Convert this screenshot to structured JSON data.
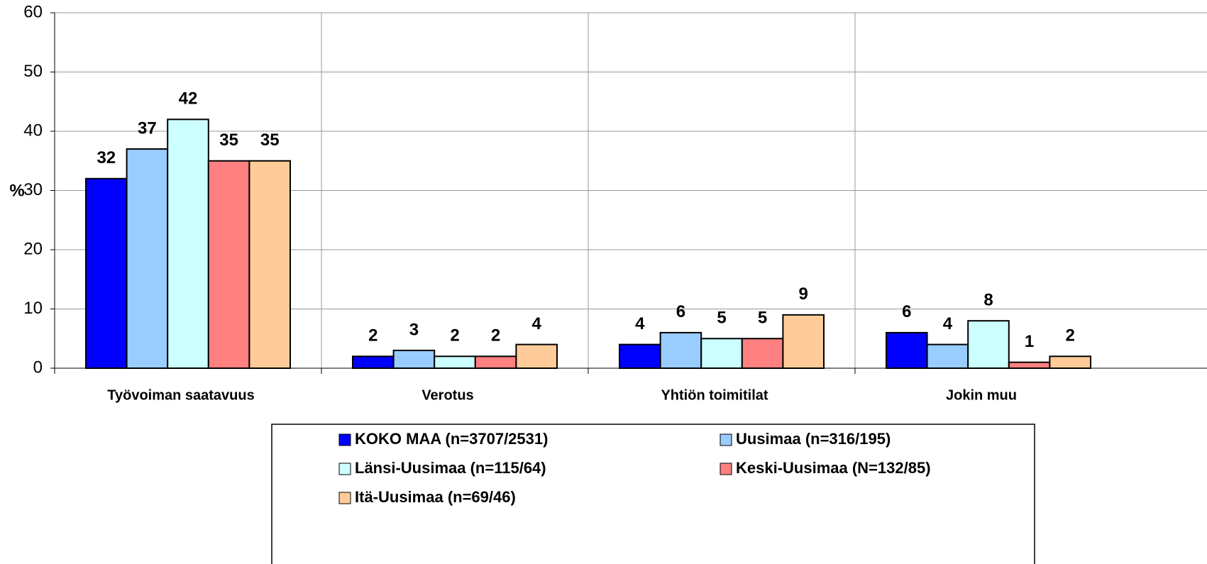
{
  "chart_data": {
    "type": "bar",
    "y_label": "%",
    "categories": [
      "Työvoiman saatavuus",
      "Verotus",
      "Yhtiön toimitilat",
      "Jokin muu"
    ],
    "series": [
      {
        "name": "KOKO MAA (n=3707/2531)",
        "color": "#0000ff",
        "values": [
          32,
          2,
          4,
          6
        ]
      },
      {
        "name": "Uusimaa (n=316/195)",
        "color": "#99ccff",
        "values": [
          37,
          3,
          6,
          4
        ]
      },
      {
        "name": "Länsi-Uusimaa (n=115/64)",
        "color": "#ccffff",
        "values": [
          42,
          2,
          5,
          8
        ]
      },
      {
        "name": "Keski-Uusimaa (N=132/85)",
        "color": "#ff8080",
        "values": [
          35,
          2,
          5,
          1
        ]
      },
      {
        "name": "Itä-Uusimaa (n=69/46)",
        "color": "#ffcc99",
        "values": [
          35,
          4,
          9,
          2
        ]
      }
    ],
    "ylim": [
      0,
      60
    ],
    "yticks": [
      0,
      10,
      20,
      30,
      40,
      50,
      60
    ],
    "grid": true,
    "legend": "bottom"
  }
}
